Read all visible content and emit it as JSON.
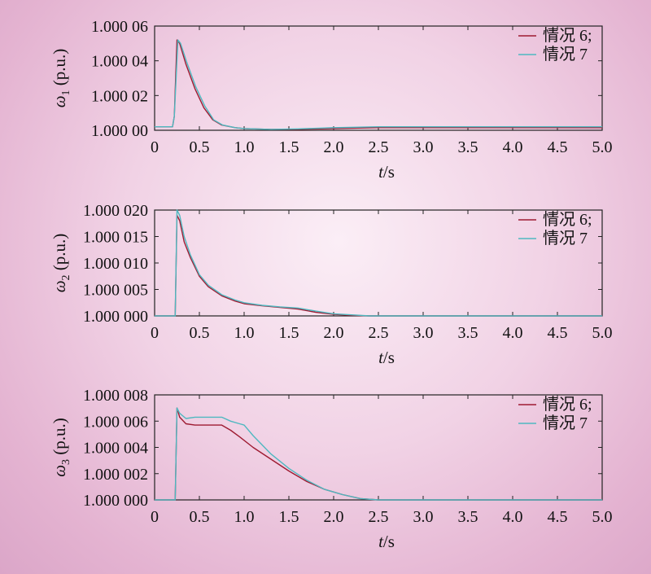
{
  "chart_data": [
    {
      "type": "line",
      "ylabel_symbol": "ω",
      "ylabel_sub": "1",
      "ylabel_unit": " (p.u.)",
      "xlabel_var": "t",
      "xlabel_unit": "/s",
      "xlim": [
        0,
        5
      ],
      "ylim": [
        1.0,
        1.00006
      ],
      "xticks": [
        "0",
        "0.5",
        "1.0",
        "1.5",
        "2.0",
        "2.5",
        "3.0",
        "3.5",
        "4.0",
        "4.5",
        "5.0"
      ],
      "yticks": [
        {
          "v": 1.0,
          "label": "1.000 00"
        },
        {
          "v": 1.00002,
          "label": "1.000 02"
        },
        {
          "v": 1.00004,
          "label": "1.000 04"
        },
        {
          "v": 1.00006,
          "label": "1.000 06"
        }
      ],
      "legend_position": "top-right",
      "series": [
        {
          "name": "情况 6;",
          "color": "#9e1b32",
          "x": [
            0.0,
            0.2,
            0.22,
            0.25,
            0.28,
            0.35,
            0.45,
            0.55,
            0.65,
            0.75,
            0.9,
            1.0,
            1.3,
            1.6,
            2.0,
            2.5,
            3.0,
            4.0,
            5.0
          ],
          "y": [
            1.000002,
            1.000002,
            1.000008,
            1.000052,
            1.00005,
            1.000038,
            1.000024,
            1.000013,
            1.000006,
            1.000003,
            1.0000015,
            1.000001,
            1.0000005,
            1.0000005,
            1.000001,
            1.0000015,
            1.0000015,
            1.0000015,
            1.0000015
          ]
        },
        {
          "name": "情况 7",
          "color": "#4fb8c0",
          "x": [
            0.0,
            0.2,
            0.22,
            0.26,
            0.29,
            0.36,
            0.46,
            0.56,
            0.66,
            0.76,
            0.9,
            1.0,
            1.3,
            1.6,
            2.0,
            2.5,
            3.0,
            4.0,
            5.0
          ],
          "y": [
            1.000002,
            1.000002,
            1.000008,
            1.000052,
            1.00005,
            1.000039,
            1.000025,
            1.000014,
            1.000006,
            1.000003,
            1.0000015,
            1.000001,
            1.0000005,
            1.0000008,
            1.0000015,
            1.000002,
            1.000002,
            1.000002,
            1.000002
          ]
        }
      ]
    },
    {
      "type": "line",
      "ylabel_symbol": "ω",
      "ylabel_sub": "2",
      "ylabel_unit": " (p.u.)",
      "xlabel_var": "t",
      "xlabel_unit": "/s",
      "xlim": [
        0,
        5
      ],
      "ylim": [
        1.0,
        1.00002
      ],
      "xticks": [
        "0",
        "0.5",
        "1.0",
        "1.5",
        "2.0",
        "2.5",
        "3.0",
        "3.5",
        "4.0",
        "4.5",
        "5.0"
      ],
      "yticks": [
        {
          "v": 1.0,
          "label": "1.000 000"
        },
        {
          "v": 1.000005,
          "label": "1.000 005"
        },
        {
          "v": 1.00001,
          "label": "1.000 010"
        },
        {
          "v": 1.000015,
          "label": "1.000 015"
        },
        {
          "v": 1.00002,
          "label": "1.000 020"
        }
      ],
      "legend_position": "top-right",
      "series": [
        {
          "name": "情况 6;",
          "color": "#9e1b32",
          "x": [
            0.0,
            0.2,
            0.23,
            0.25,
            0.28,
            0.33,
            0.4,
            0.5,
            0.6,
            0.75,
            0.9,
            1.0,
            1.2,
            1.4,
            1.6,
            1.8,
            2.0,
            2.2,
            2.4,
            2.6,
            3.0,
            4.0,
            5.0
          ],
          "y": [
            1.0,
            1.0,
            1.0,
            1.000019,
            1.000018,
            1.000014,
            1.000011,
            1.0000075,
            1.0000055,
            1.0000038,
            1.0000028,
            1.0000023,
            1.0000019,
            1.0000016,
            1.0000013,
            1.0000007,
            1.0000003,
            1.0000001,
            1.0,
            1.0,
            1.0,
            1.0,
            1.0
          ]
        },
        {
          "name": "情况 7",
          "color": "#4fb8c0",
          "x": [
            0.0,
            0.2,
            0.23,
            0.25,
            0.28,
            0.33,
            0.4,
            0.5,
            0.6,
            0.75,
            0.9,
            1.0,
            1.2,
            1.4,
            1.6,
            1.8,
            2.0,
            2.2,
            2.4,
            2.6,
            3.0,
            4.0,
            5.0
          ],
          "y": [
            1.0,
            1.0,
            1.0,
            1.00002,
            1.000019,
            1.000015,
            1.0000115,
            1.0000078,
            1.0000058,
            1.000004,
            1.000003,
            1.0000025,
            1.000002,
            1.0000017,
            1.0000015,
            1.0000009,
            1.0000004,
            1.0000002,
            1.0,
            1.0,
            1.0,
            1.0,
            1.0
          ]
        }
      ]
    },
    {
      "type": "line",
      "ylabel_symbol": "ω",
      "ylabel_sub": "3",
      "ylabel_unit": " (p.u.)",
      "xlabel_var": "t",
      "xlabel_unit": "/s",
      "xlim": [
        0,
        5
      ],
      "ylim": [
        1.0,
        1.000008
      ],
      "xticks": [
        "0",
        "0.5",
        "1.0",
        "1.5",
        "2.0",
        "2.5",
        "3.0",
        "3.5",
        "4.0",
        "4.5",
        "5.0"
      ],
      "yticks": [
        {
          "v": 1.0,
          "label": "1.000 000"
        },
        {
          "v": 1.000002,
          "label": "1.000 002"
        },
        {
          "v": 1.000004,
          "label": "1.000 004"
        },
        {
          "v": 1.000006,
          "label": "1.000 006"
        },
        {
          "v": 1.000008,
          "label": "1.000 008"
        }
      ],
      "legend_position": "top-right",
      "series": [
        {
          "name": "情况 6;",
          "color": "#9e1b32",
          "x": [
            0.0,
            0.2,
            0.23,
            0.25,
            0.28,
            0.35,
            0.45,
            0.6,
            0.75,
            0.85,
            0.95,
            1.1,
            1.3,
            1.5,
            1.7,
            1.9,
            2.1,
            2.3,
            2.5,
            3.0,
            4.0,
            5.0
          ],
          "y": [
            1.0,
            1.0,
            1.0,
            1.000007,
            1.0000063,
            1.0000058,
            1.0000057,
            1.0000057,
            1.0000057,
            1.0000053,
            1.0000048,
            1.000004,
            1.0000031,
            1.0000022,
            1.0000014,
            1.0000008,
            1.0000004,
            1.0000001,
            1.0,
            1.0,
            1.0,
            1.0
          ]
        },
        {
          "name": "情况 7",
          "color": "#4fb8c0",
          "x": [
            0.0,
            0.2,
            0.23,
            0.25,
            0.28,
            0.35,
            0.45,
            0.6,
            0.75,
            0.85,
            0.95,
            1.0,
            1.1,
            1.3,
            1.5,
            1.7,
            1.9,
            2.1,
            2.3,
            2.5,
            3.0,
            4.0,
            5.0
          ],
          "y": [
            1.0,
            1.0,
            1.0,
            1.000007,
            1.0000066,
            1.0000062,
            1.0000063,
            1.0000063,
            1.0000063,
            1.000006,
            1.0000058,
            1.0000057,
            1.0000049,
            1.0000035,
            1.0000024,
            1.0000015,
            1.0000008,
            1.0000004,
            1.0000001,
            1.0,
            1.0,
            1.0,
            1.0
          ]
        }
      ]
    }
  ]
}
